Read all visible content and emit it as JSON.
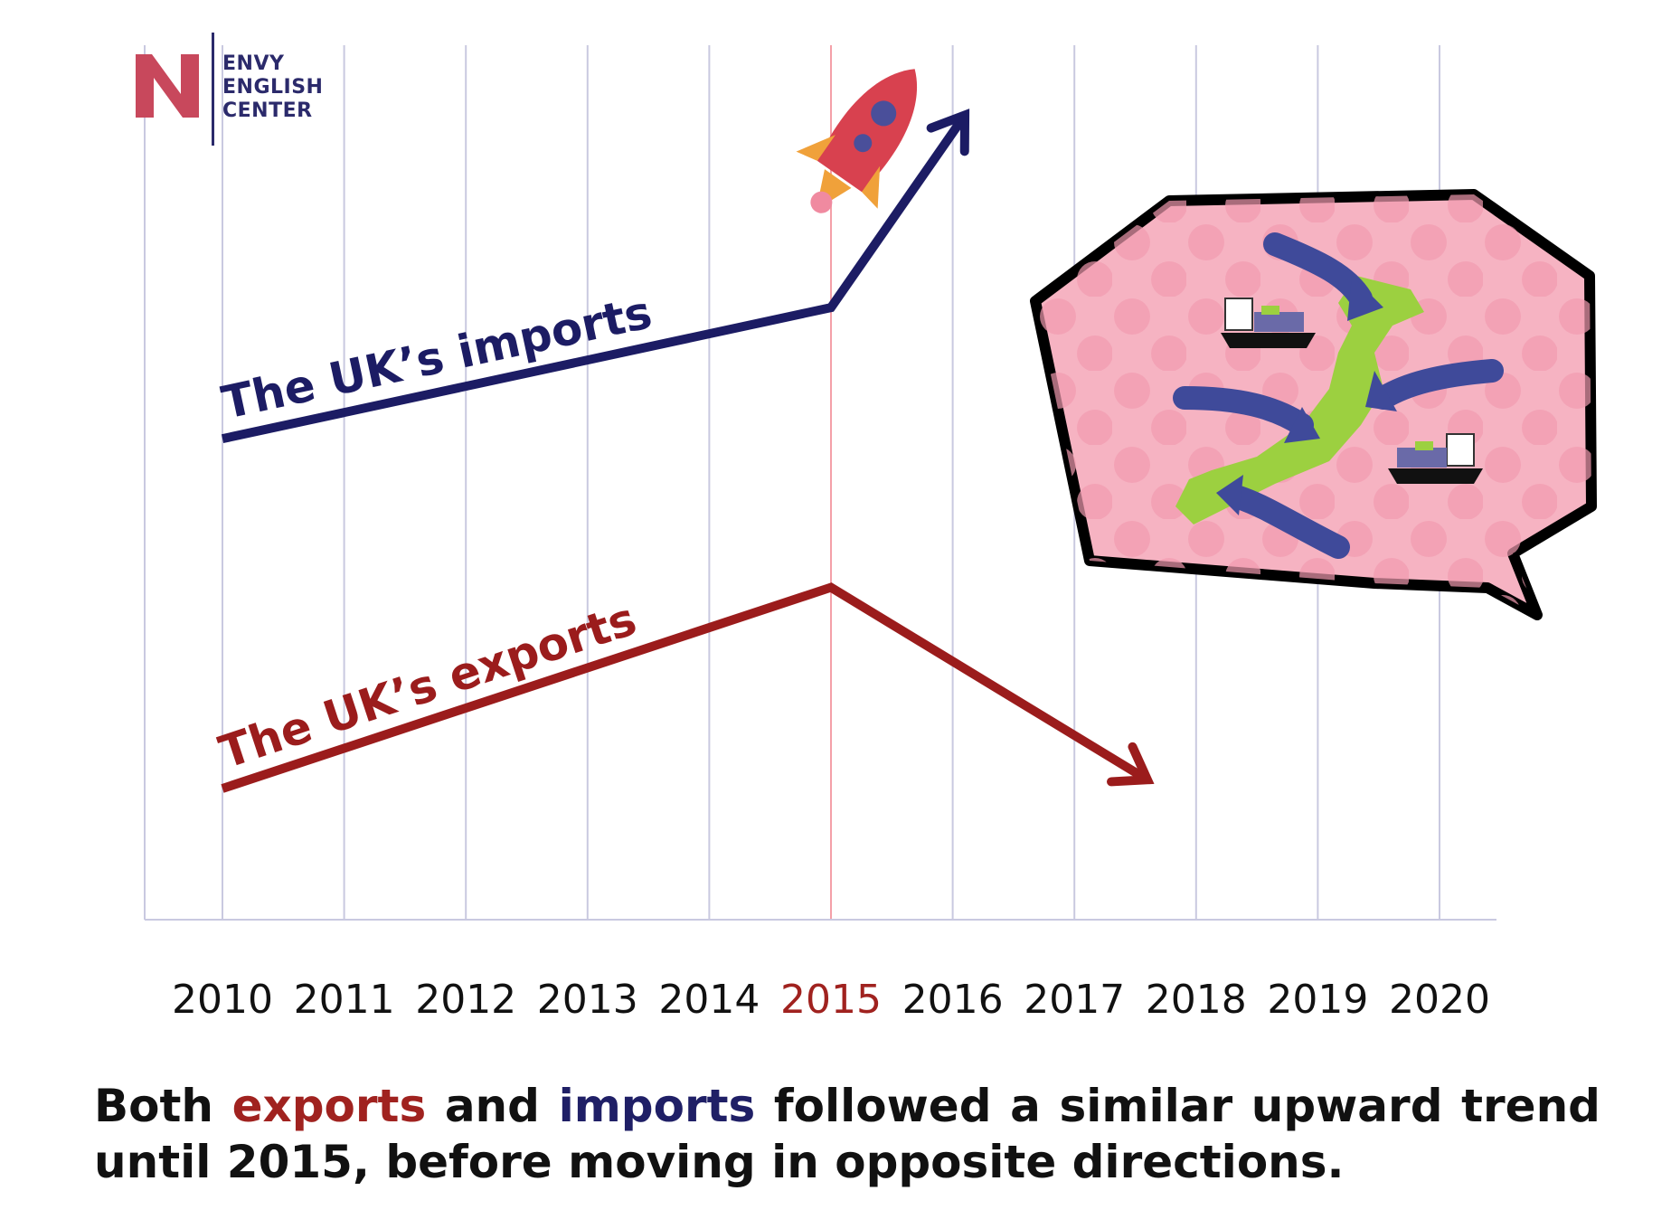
{
  "logo": {
    "line1": "ENVY",
    "line2": "ENGLISH",
    "line3": "CENTER",
    "icon": "n-letter-logo"
  },
  "chart_data": {
    "type": "line",
    "categories": [
      "2010",
      "2011",
      "2012",
      "2013",
      "2014",
      "2015",
      "2016",
      "2017",
      "2018",
      "2019",
      "2020"
    ],
    "highlight_category": "2015",
    "series": [
      {
        "name": "The UK’s imports",
        "color": "#1c1c64",
        "points": [
          [
            2010,
            0.55
          ],
          [
            2015,
            0.7
          ],
          [
            2016.1,
            0.92
          ]
        ],
        "end_arrow": true
      },
      {
        "name": "The UK’s exports",
        "color": "#9b1c1c",
        "points": [
          [
            2010,
            0.15
          ],
          [
            2015,
            0.38
          ],
          [
            2017.6,
            0.16
          ]
        ],
        "end_arrow": true
      }
    ],
    "grid": "vertical",
    "xlabel": "",
    "ylabel": ""
  },
  "colors": {
    "imports": "#1c1c64",
    "exports": "#9b1c1c",
    "highlight": "#a0221f",
    "grid": "#c9c9e0"
  },
  "decorations": [
    "rocket-icon",
    "speech-bubble-japan-map",
    "cargo-ship-icon",
    "import-arrow-icon"
  ],
  "caption": {
    "w1": "Both",
    "w2": "exports",
    "w3": "and",
    "w4": "imports",
    "w5": "followed a similar upward trend until 2015, before moving in opposite directions."
  }
}
